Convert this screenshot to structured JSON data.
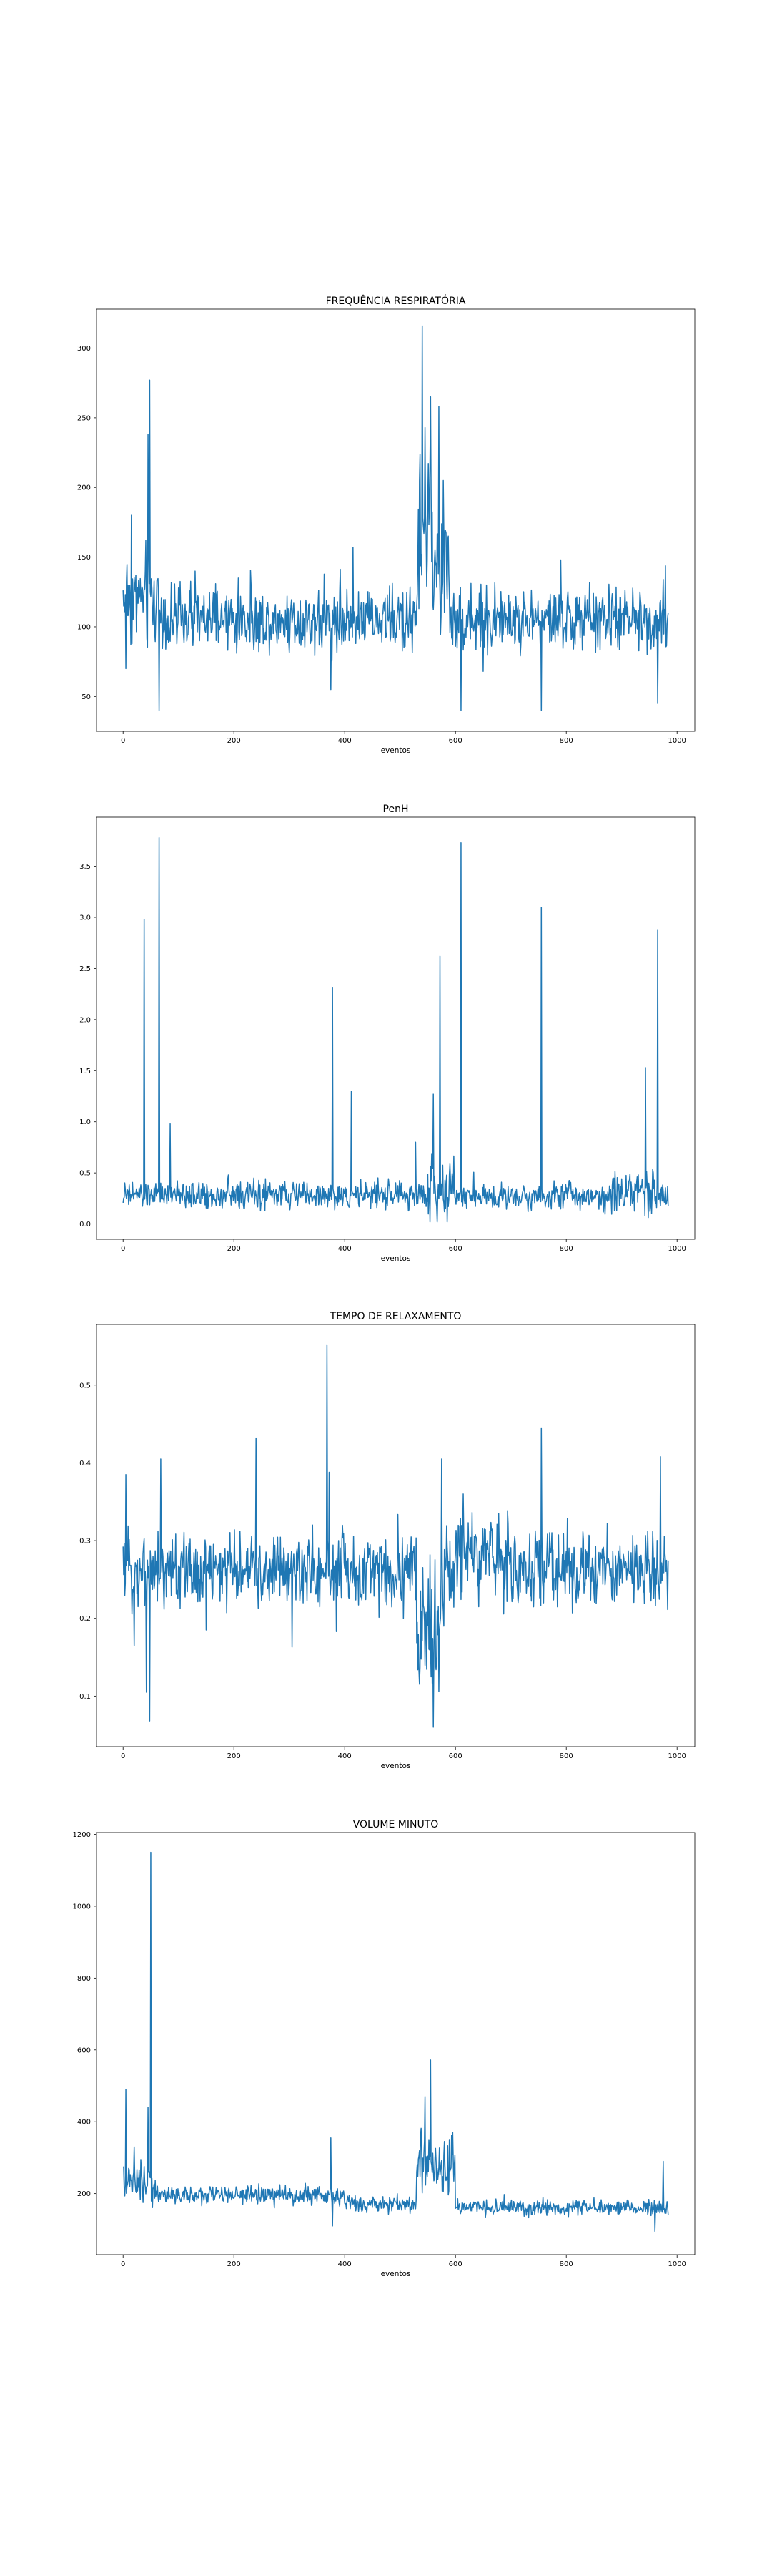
{
  "figure": {
    "line_color": "#1f77b4",
    "panels": 4
  },
  "chart_data": [
    {
      "type": "line",
      "title": "FREQUÊNCIA RESPIRATÓRIA",
      "xlabel": "eventos",
      "ylabel": "",
      "xlim": [
        -48,
        1032
      ],
      "ylim": [
        25,
        328
      ],
      "xticks": [
        0,
        200,
        400,
        600,
        800,
        1000
      ],
      "yticks": [
        50,
        100,
        150,
        200,
        250,
        300
      ],
      "grid": false,
      "series": [
        {
          "n": 985,
          "baseline": 105,
          "noise": 12,
          "min": 40,
          "max": 316,
          "segments": [
            {
              "from": 0,
              "to": 70,
              "add": 15,
              "noise": 20
            },
            {
              "from": 530,
              "to": 560,
              "add": 60,
              "noise": 35
            },
            {
              "from": 560,
              "to": 590,
              "add": 35,
              "noise": 25
            }
          ],
          "spikes": [
            {
              "x": 5,
              "y": 70
            },
            {
              "x": 15,
              "y": 180
            },
            {
              "x": 45,
              "y": 238
            },
            {
              "x": 48,
              "y": 277
            },
            {
              "x": 55,
              "y": 120
            },
            {
              "x": 65,
              "y": 40
            },
            {
              "x": 130,
              "y": 140
            },
            {
              "x": 375,
              "y": 55
            },
            {
              "x": 415,
              "y": 157
            },
            {
              "x": 540,
              "y": 316
            },
            {
              "x": 545,
              "y": 243
            },
            {
              "x": 555,
              "y": 265
            },
            {
              "x": 570,
              "y": 258
            },
            {
              "x": 578,
              "y": 205
            },
            {
              "x": 610,
              "y": 40
            },
            {
              "x": 650,
              "y": 68
            },
            {
              "x": 755,
              "y": 40
            },
            {
              "x": 790,
              "y": 148
            },
            {
              "x": 965,
              "y": 45
            },
            {
              "x": 975,
              "y": 134
            }
          ]
        }
      ]
    },
    {
      "type": "line",
      "title": "PenH",
      "xlabel": "eventos",
      "ylabel": "",
      "xlim": [
        -48,
        1032
      ],
      "ylim": [
        -0.15,
        3.98
      ],
      "xticks": [
        0,
        200,
        400,
        600,
        800,
        1000
      ],
      "yticks": [
        0.0,
        0.5,
        1.0,
        1.5,
        2.0,
        2.5,
        3.0,
        3.5
      ],
      "grid": false,
      "series": [
        {
          "n": 985,
          "baseline": 0.28,
          "noise": 0.07,
          "min": 0.02,
          "max": 3.78,
          "segments": [
            {
              "from": 550,
              "to": 600,
              "add": 0.05,
              "noise": 0.18
            },
            {
              "from": 880,
              "to": 960,
              "add": 0.05,
              "noise": 0.12
            }
          ],
          "spikes": [
            {
              "x": 38,
              "y": 2.98
            },
            {
              "x": 65,
              "y": 3.78
            },
            {
              "x": 85,
              "y": 0.98
            },
            {
              "x": 378,
              "y": 2.31
            },
            {
              "x": 412,
              "y": 1.3
            },
            {
              "x": 528,
              "y": 0.8
            },
            {
              "x": 560,
              "y": 1.27
            },
            {
              "x": 572,
              "y": 2.62
            },
            {
              "x": 610,
              "y": 3.73
            },
            {
              "x": 755,
              "y": 3.1
            },
            {
              "x": 943,
              "y": 1.53
            },
            {
              "x": 965,
              "y": 2.88
            }
          ]
        }
      ]
    },
    {
      "type": "line",
      "title": "TEMPO DE RELAXAMENTO",
      "xlabel": "eventos",
      "ylabel": "",
      "xlim": [
        -48,
        1032
      ],
      "ylim": [
        0.035,
        0.578
      ],
      "xticks": [
        0,
        200,
        400,
        600,
        800,
        1000
      ],
      "yticks": [
        0.1,
        0.2,
        0.3,
        0.4,
        0.5
      ],
      "grid": false,
      "series": [
        {
          "n": 985,
          "baseline": 0.262,
          "noise": 0.025,
          "min": 0.058,
          "max": 0.552,
          "segments": [
            {
              "from": 530,
              "to": 580,
              "add": -0.07,
              "noise": 0.05
            },
            {
              "from": 600,
              "to": 700,
              "add": 0.02,
              "noise": 0.03
            }
          ],
          "spikes": [
            {
              "x": 5,
              "y": 0.385
            },
            {
              "x": 20,
              "y": 0.165
            },
            {
              "x": 42,
              "y": 0.105
            },
            {
              "x": 48,
              "y": 0.068
            },
            {
              "x": 68,
              "y": 0.405
            },
            {
              "x": 150,
              "y": 0.185
            },
            {
              "x": 240,
              "y": 0.432
            },
            {
              "x": 305,
              "y": 0.163
            },
            {
              "x": 368,
              "y": 0.552
            },
            {
              "x": 372,
              "y": 0.388
            },
            {
              "x": 385,
              "y": 0.183
            },
            {
              "x": 560,
              "y": 0.06
            },
            {
              "x": 575,
              "y": 0.405
            },
            {
              "x": 755,
              "y": 0.445
            },
            {
              "x": 970,
              "y": 0.408
            }
          ]
        }
      ]
    },
    {
      "type": "line",
      "title": "VOLUME MINUTO",
      "xlabel": "eventos",
      "ylabel": "",
      "xlim": [
        -48,
        1032
      ],
      "ylim": [
        30,
        1205
      ],
      "xticks": [
        0,
        200,
        400,
        600,
        800,
        1000
      ],
      "yticks": [
        200,
        400,
        600,
        800,
        1000,
        1200
      ],
      "grid": false,
      "series": [
        {
          "n": 985,
          "baseline": 185,
          "noise": 14,
          "min": 95,
          "max": 1150,
          "segments": [
            {
              "from": 0,
              "to": 60,
              "add": 40,
              "noise": 30
            },
            {
              "from": 60,
              "to": 400,
              "add": 10,
              "noise": 14
            },
            {
              "from": 400,
              "to": 530,
              "add": -15,
              "noise": 12
            },
            {
              "from": 530,
              "to": 600,
              "add": 95,
              "noise": 40
            },
            {
              "from": 600,
              "to": 985,
              "add": -25,
              "noise": 12
            }
          ],
          "spikes": [
            {
              "x": 5,
              "y": 490
            },
            {
              "x": 20,
              "y": 330
            },
            {
              "x": 45,
              "y": 440
            },
            {
              "x": 50,
              "y": 1150
            },
            {
              "x": 375,
              "y": 355
            },
            {
              "x": 378,
              "y": 110
            },
            {
              "x": 545,
              "y": 470
            },
            {
              "x": 555,
              "y": 572
            },
            {
              "x": 960,
              "y": 95
            },
            {
              "x": 975,
              "y": 290
            }
          ]
        }
      ]
    }
  ]
}
